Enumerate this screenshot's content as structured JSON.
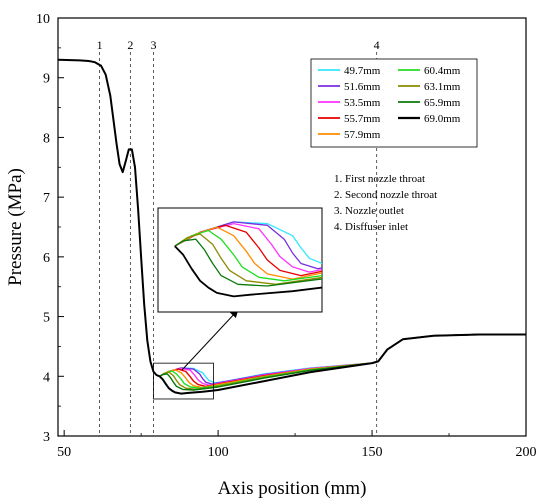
{
  "chart_data": {
    "type": "line",
    "xlabel": "Axis position (mm)",
    "ylabel": "Pressure (MPa)",
    "xlim": [
      48,
      200
    ],
    "ylim": [
      3,
      10
    ],
    "xticks": [
      50,
      100,
      150,
      200
    ],
    "yticks": [
      3,
      4,
      5,
      6,
      7,
      8,
      9,
      10
    ],
    "grid": false,
    "legend_position": "top-right",
    "vertical_markers": [
      {
        "label": "1",
        "x": 61.5
      },
      {
        "label": "2",
        "x": 71.5
      },
      {
        "label": "3",
        "x": 79.0
      },
      {
        "label": "4",
        "x": 151.5
      }
    ],
    "annotations": [
      "1. First nozzle throat",
      "2. Second nozzle throat",
      "3. Nozzle outlet",
      "4. Disffuser inlet"
    ],
    "zoom_region": {
      "x": [
        79,
        98.5
      ],
      "y": [
        3.62,
        4.22
      ]
    },
    "base_curve": {
      "x": [
        48,
        55,
        58,
        60,
        62,
        63.5,
        65,
        66,
        67,
        68,
        69,
        70,
        71,
        72,
        73,
        74,
        75,
        76,
        77,
        78,
        79,
        80,
        81
      ],
      "y": [
        9.3,
        9.29,
        9.28,
        9.26,
        9.2,
        9.05,
        8.7,
        8.3,
        7.9,
        7.55,
        7.42,
        7.6,
        7.8,
        7.8,
        7.5,
        6.8,
        6.0,
        5.2,
        4.6,
        4.25,
        4.08,
        4.02,
        4.0
      ]
    },
    "series": [
      {
        "name": "49.7mm",
        "color": "#33e6ff",
        "x": [
          81,
          84,
          88,
          92,
          95,
          96,
          97,
          99,
          103,
          115,
          130,
          150,
          152,
          155,
          160,
          170,
          185,
          200
        ],
        "y": [
          4.0,
          4.08,
          4.14,
          4.13,
          4.06,
          3.99,
          3.93,
          3.89,
          3.92,
          4.04,
          4.14,
          4.22,
          4.25,
          4.45,
          4.62,
          4.68,
          4.7,
          4.7
        ]
      },
      {
        "name": "51.6mm",
        "color": "#7a2fe0",
        "x": [
          81,
          84,
          88,
          92,
          94,
          95,
          96,
          98,
          102,
          115,
          130,
          150,
          152,
          155,
          160,
          170,
          185,
          200
        ],
        "y": [
          4.0,
          4.08,
          4.14,
          4.12,
          4.04,
          3.96,
          3.9,
          3.87,
          3.91,
          4.03,
          4.13,
          4.22,
          4.25,
          4.45,
          4.62,
          4.68,
          4.7,
          4.7
        ]
      },
      {
        "name": "53.5mm",
        "color": "#ff33ff",
        "x": [
          81,
          84,
          88,
          91,
          92.5,
          93.5,
          95,
          97,
          101,
          115,
          130,
          150,
          152,
          155,
          160,
          170,
          185,
          200
        ],
        "y": [
          4.0,
          4.08,
          4.13,
          4.1,
          4.01,
          3.94,
          3.88,
          3.85,
          3.89,
          4.02,
          4.13,
          4.22,
          4.25,
          4.45,
          4.62,
          4.68,
          4.7,
          4.7
        ]
      },
      {
        "name": "55.7mm",
        "color": "#e60000",
        "x": [
          81,
          84,
          87,
          89.5,
          91,
          92,
          93.5,
          96,
          100,
          115,
          130,
          150,
          152,
          155,
          160,
          170,
          185,
          200
        ],
        "y": [
          4.0,
          4.08,
          4.12,
          4.08,
          3.99,
          3.92,
          3.86,
          3.83,
          3.87,
          4.01,
          4.12,
          4.22,
          4.25,
          4.45,
          4.62,
          4.68,
          4.7,
          4.7
        ]
      },
      {
        "name": "57.9mm",
        "color": "#ff8c00",
        "x": [
          81,
          83.5,
          86,
          88,
          89.5,
          90.5,
          92,
          95,
          100,
          115,
          130,
          150,
          152,
          155,
          160,
          170,
          185,
          200
        ],
        "y": [
          4.0,
          4.07,
          4.11,
          4.06,
          3.97,
          3.9,
          3.84,
          3.81,
          3.86,
          4.0,
          4.12,
          4.22,
          4.25,
          4.45,
          4.62,
          4.68,
          4.7,
          4.7
        ]
      },
      {
        "name": "60.4mm",
        "color": "#22dd22",
        "x": [
          81,
          83,
          85,
          86.5,
          88,
          89,
          91,
          94,
          100,
          115,
          130,
          150,
          152,
          155,
          160,
          170,
          185,
          200
        ],
        "y": [
          4.0,
          4.06,
          4.09,
          4.04,
          3.95,
          3.88,
          3.82,
          3.8,
          3.84,
          3.99,
          4.11,
          4.22,
          4.25,
          4.45,
          4.62,
          4.68,
          4.7,
          4.7
        ]
      },
      {
        "name": "63.1mm",
        "color": "#8b8b00",
        "x": [
          81,
          82.5,
          84,
          85.5,
          86.5,
          87.5,
          89.5,
          93,
          100,
          115,
          130,
          150,
          152,
          155,
          160,
          170,
          185,
          200
        ],
        "y": [
          4.0,
          4.05,
          4.07,
          4.01,
          3.93,
          3.86,
          3.8,
          3.78,
          3.83,
          3.98,
          4.1,
          4.22,
          4.25,
          4.45,
          4.62,
          4.68,
          4.7,
          4.7
        ]
      },
      {
        "name": "65.9mm",
        "color": "#0a7a0a",
        "x": [
          81,
          82,
          83.5,
          84.5,
          85.5,
          86.5,
          88.5,
          92,
          100,
          115,
          130,
          150,
          152,
          155,
          160,
          170,
          185,
          200
        ],
        "y": [
          4.0,
          4.03,
          4.04,
          3.98,
          3.9,
          3.83,
          3.78,
          3.77,
          3.82,
          3.97,
          4.1,
          4.22,
          4.25,
          4.45,
          4.62,
          4.68,
          4.7,
          4.7
        ]
      },
      {
        "name": "69.0mm",
        "color": "#000000",
        "x": [
          81,
          82,
          83,
          84,
          85,
          86,
          88,
          90,
          95,
          100,
          115,
          130,
          150,
          152,
          155,
          160,
          170,
          185,
          200
        ],
        "y": [
          4.0,
          3.95,
          3.87,
          3.8,
          3.76,
          3.73,
          3.71,
          3.72,
          3.74,
          3.77,
          3.92,
          4.07,
          4.22,
          4.25,
          4.45,
          4.62,
          4.68,
          4.7,
          4.7
        ]
      }
    ]
  }
}
